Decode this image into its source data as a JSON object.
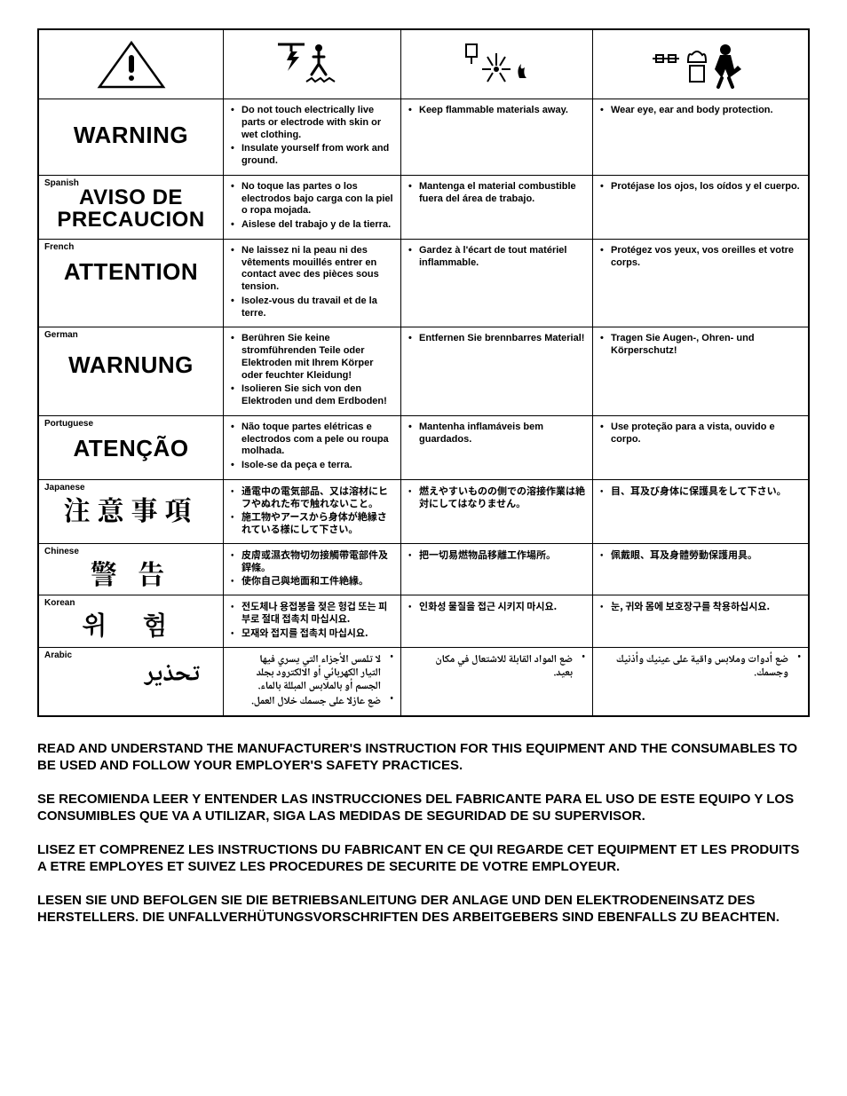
{
  "icons": [
    "warning-triangle",
    "electric-shock",
    "fire-spark",
    "ppe"
  ],
  "rows": [
    {
      "lang": "",
      "word": "WARNING",
      "wordClass": "big-en",
      "c1": [
        "Do not touch electrically live parts or electrode with skin or wet clothing.",
        "Insulate yourself from work and ground."
      ],
      "c2": [
        "Keep flammable materials away."
      ],
      "c3": [
        "Wear eye, ear and body protection."
      ]
    },
    {
      "lang": "Spanish",
      "word": "AVISO DE PRECAUCION",
      "wordClass": "big-es",
      "c1": [
        "No toque las partes o los electrodos bajo carga con la piel o ropa mojada.",
        "Aislese del trabajo y de la tierra."
      ],
      "c2": [
        "Mantenga el material combustible fuera del área de trabajo."
      ],
      "c3": [
        "Protéjase los ojos, los oídos y el cuerpo."
      ]
    },
    {
      "lang": "French",
      "word": "ATTENTION",
      "wordClass": "big-fr",
      "c1": [
        "Ne laissez ni la peau ni des vêtements mouillés entrer en contact avec des pièces sous tension.",
        "Isolez-vous du travail et de la terre."
      ],
      "c2": [
        "Gardez à l'écart de tout matériel inflammable."
      ],
      "c3": [
        "Protégez vos yeux, vos oreilles et votre corps."
      ]
    },
    {
      "lang": "German",
      "word": "WARNUNG",
      "wordClass": "big-de",
      "c1": [
        "Berühren Sie keine stromführenden Teile oder Elektroden mit Ihrem Körper oder feuchter Kleidung!",
        "Isolieren Sie sich von den Elektroden und dem Erdboden!"
      ],
      "c2": [
        "Entfernen Sie brennbarres Material!"
      ],
      "c3": [
        "Tragen Sie Augen-, Ohren- und Körperschutz!"
      ]
    },
    {
      "lang": "Portuguese",
      "word": "ATENÇÃO",
      "wordClass": "big-pt",
      "c1": [
        "Não toque partes elétricas e electrodos com a pele ou roupa molhada.",
        "Isole-se da peça e terra."
      ],
      "c2": [
        "Mantenha inflamáveis bem guardados."
      ],
      "c3": [
        "Use proteção para a vista, ouvido e corpo."
      ]
    },
    {
      "lang": "Japanese",
      "word": "注意事項",
      "wordClass": "big-cjk",
      "listClass": "cjk",
      "c1": [
        "通電中の電気部品、又は溶材にヒフやぬれた布で触れないこと。",
        "施工物やアースから身体が絶縁されている様にして下さい。"
      ],
      "c2": [
        "燃えやすいものの側での溶接作業は絶対にしてはなりません。"
      ],
      "c3": [
        "目、耳及び身体に保護具をして下さい。"
      ]
    },
    {
      "lang": "Chinese",
      "word": "警 告",
      "wordClass": "big-cjk",
      "listClass": "cjk",
      "c1": [
        "皮膚或濕衣物切勿接觸帶電部件及銲條。",
        "使你自己與地面和工件絶緣。"
      ],
      "c2": [
        "把一切易燃物品移離工作場所。"
      ],
      "c3": [
        "佩戴眼、耳及身體勞動保護用具。"
      ]
    },
    {
      "lang": "Korean",
      "word": "위 험",
      "wordClass": "big-ko",
      "listClass": "ko",
      "c1": [
        "전도체나 용접봉을 젖은 헝겁 또는 피부로 절대 접촉치 마십시요.",
        "모재와 접지를 접촉치 마십시요."
      ],
      "c2": [
        "인화성 물질을 접근 시키지 마시요."
      ],
      "c3": [
        "눈, 귀와 몸에 보호장구를 착용하십시요."
      ]
    },
    {
      "lang": "Arabic",
      "word": "تحذير",
      "wordClass": "big-ar",
      "listClass": "ar",
      "c1": [
        "لا تلمس الأجزاء التي يسري فيها التيار الكهربائي أو الالكترود بجلد الجسم أو بالملابس المبللة بالماء.",
        "ضع عازلا على جسمك خلال العمل."
      ],
      "c2": [
        "ضع المواد القابلة للاشتعال في مكان بعيد."
      ],
      "c3": [
        "ضع أدوات وملابس واقية على عينيك وأذنيك وجسمك."
      ]
    }
  ],
  "footer": [
    "READ AND UNDERSTAND THE MANUFACTURER'S INSTRUCTION FOR THIS EQUIPMENT AND THE CONSUMABLES TO BE USED AND FOLLOW YOUR EMPLOYER'S SAFETY PRACTICES.",
    "SE RECOMIENDA LEER Y ENTENDER LAS INSTRUCCIONES DEL FABRICANTE PARA EL USO DE ESTE EQUIPO Y LOS CONSUMIBLES QUE VA A UTILIZAR, SIGA LAS MEDIDAS DE SEGURIDAD DE SU SUPERVISOR.",
    "LISEZ ET COMPRENEZ LES INSTRUCTIONS DU FABRICANT EN CE QUI REGARDE CET EQUIPMENT ET LES PRODUITS A ETRE EMPLOYES ET SUIVEZ LES PROCEDURES DE SECURITE DE VOTRE EMPLOYEUR.",
    "LESEN SIE UND BEFOLGEN SIE DIE BETRIEBSANLEITUNG DER ANLAGE UND DEN ELEKTRODENEINSATZ DES HERSTELLERS. DIE UNFALLVERHÜTUNGSVORSCHRIFTEN DES ARBEITGEBERS SIND EBENFALLS ZU BEACHTEN."
  ]
}
